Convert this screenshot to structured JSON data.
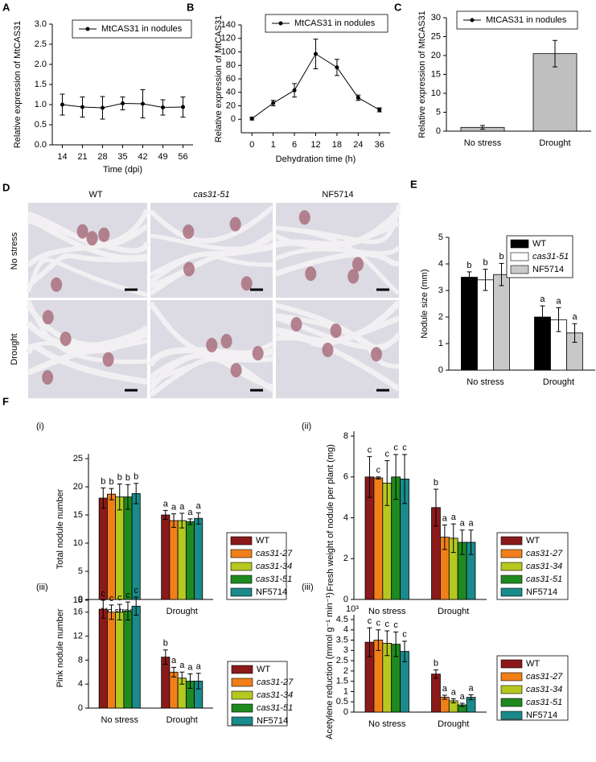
{
  "panel_d": {
    "panel": "D",
    "columns": [
      "WT",
      "cas31-51",
      "NF5714"
    ],
    "rows": [
      "No stress",
      "Drought"
    ]
  },
  "panel_f": "F",
  "chart_data": [
    {
      "type": "line",
      "panel": "A",
      "legend": "MtCAS31 in nodules",
      "color": "#000000",
      "y_label": "Relative expression of MtCAS31",
      "x_label": "Time (dpi)",
      "categories": [
        "14",
        "21",
        "28",
        "35",
        "42",
        "49",
        "56"
      ],
      "values": [
        1.0,
        0.94,
        0.92,
        1.03,
        1.02,
        0.93,
        0.94
      ],
      "errors": [
        0.26,
        0.25,
        0.28,
        0.16,
        0.35,
        0.19,
        0.25
      ],
      "ylim": [
        0,
        3
      ],
      "yticks": [
        {
          "value": 0,
          "label": "0.0"
        },
        {
          "value": 0.5,
          "label": "0.5"
        },
        {
          "value": 1,
          "label": "1.0"
        },
        {
          "value": 1.5,
          "label": "1.5"
        },
        {
          "value": 2,
          "label": "2.0"
        },
        {
          "value": 2.5,
          "label": "2.5"
        },
        {
          "value": 3,
          "label": "3.0"
        }
      ]
    },
    {
      "type": "line",
      "panel": "B",
      "legend": "MtCAS31 in nodules",
      "color": "#000000",
      "y_label": "Relative expression of MtCAS31",
      "x_label": "Dehydration time (h)",
      "categories": [
        "0",
        "1",
        "6",
        "12",
        "18",
        "24",
        "36"
      ],
      "values": [
        1,
        24,
        43,
        97,
        77,
        32,
        14
      ],
      "errors": [
        2,
        4,
        10,
        22,
        12,
        4,
        3
      ],
      "ylim": [
        -20,
        140
      ],
      "yticks": [
        0,
        20,
        40,
        60,
        80,
        100,
        120,
        140
      ]
    },
    {
      "type": "bar",
      "panel": "C",
      "legend": "MtCAS31 in nodules",
      "color": "#c0c0c0",
      "y_label": "Relative expression of MtCAS31",
      "categories": [
        "No stress",
        "Drought"
      ],
      "values": [
        1,
        20.5
      ],
      "errors": [
        0.5,
        3.5
      ],
      "ylim": [
        0,
        30
      ],
      "yticks": [
        0,
        5,
        10,
        15,
        20,
        25,
        30
      ]
    },
    {
      "type": "bar",
      "panel": "E",
      "y_label": "Nodule size (mm)",
      "categories": [
        "No stress",
        "Drought"
      ],
      "series": [
        {
          "name": "WT",
          "color": "#000000",
          "values": [
            3.5,
            2.0
          ],
          "errors": [
            0.2,
            0.42
          ],
          "letters": [
            "b",
            "a"
          ]
        },
        {
          "name": "cas31-51",
          "color": "#ffffff",
          "values": [
            3.4,
            1.9
          ],
          "errors": [
            0.4,
            0.45
          ],
          "letters": [
            "b",
            "a"
          ]
        },
        {
          "name": "NF5714",
          "color": "#c8c8c8",
          "values": [
            3.6,
            1.4
          ],
          "errors": [
            0.42,
            0.35
          ],
          "letters": [
            "b",
            "a"
          ]
        }
      ],
      "ylim": [
        0,
        5
      ],
      "yticks": [
        0,
        1,
        2,
        3,
        4,
        5
      ]
    },
    {
      "type": "bar",
      "panel": "(i)",
      "y_label": "Total nodule number",
      "categories": [
        "No stress",
        "Drought"
      ],
      "series": [
        {
          "name": "WT",
          "color": "#8b1a1a",
          "values": [
            18,
            15
          ],
          "errors": [
            1.8,
            0.8
          ],
          "letters": [
            "b",
            "a"
          ]
        },
        {
          "name": "cas31-27",
          "color": "#f07f1a",
          "values": [
            18.7,
            14
          ],
          "errors": [
            1.0,
            1.2
          ],
          "letters": [
            "b",
            "a"
          ]
        },
        {
          "name": "cas31-34",
          "color": "#b5c820",
          "values": [
            18.2,
            14
          ],
          "errors": [
            2.3,
            1.3
          ],
          "letters": [
            "b",
            "a"
          ]
        },
        {
          "name": "cas31-51",
          "color": "#1f8a1f",
          "values": [
            18.2,
            13.8
          ],
          "errors": [
            2.2,
            0.5
          ],
          "letters": [
            "b",
            "a"
          ]
        },
        {
          "name": "NF5714",
          "color": "#1a8a8a",
          "values": [
            18.8,
            14.4
          ],
          "errors": [
            1.8,
            1.0
          ],
          "letters": [
            "b",
            "a"
          ]
        }
      ],
      "ylim": [
        0,
        25
      ],
      "yticks": [
        0,
        5,
        10,
        15,
        20,
        25
      ]
    },
    {
      "type": "bar",
      "panel": "(ii)",
      "y_label": "Fresh weight of nodule per plant (mg)",
      "categories": [
        "No stress",
        "Drought"
      ],
      "series": [
        {
          "name": "WT",
          "color": "#8b1a1a",
          "values": [
            6,
            4.5
          ],
          "errors": [
            1.0,
            0.9
          ],
          "letters": [
            "c",
            "b"
          ]
        },
        {
          "name": "cas31-27",
          "color": "#f07f1a",
          "values": [
            5.95,
            3.05
          ],
          "errors": [
            0.05,
            0.6
          ],
          "letters": [
            "c",
            "a"
          ]
        },
        {
          "name": "cas31-34",
          "color": "#b5c820",
          "values": [
            5.7,
            3.0
          ],
          "errors": [
            1.1,
            0.7
          ],
          "letters": [
            "c",
            "a"
          ]
        },
        {
          "name": "cas31-51",
          "color": "#1f8a1f",
          "values": [
            6,
            2.8
          ],
          "errors": [
            1.1,
            0.6
          ],
          "letters": [
            "c",
            "a"
          ]
        },
        {
          "name": "NF5714",
          "color": "#1a8a8a",
          "values": [
            5.9,
            2.8
          ],
          "errors": [
            1.2,
            0.6
          ],
          "letters": [
            "c",
            "a"
          ]
        }
      ],
      "ylim": [
        0,
        8
      ],
      "yticks": [
        0,
        2,
        4,
        6,
        8
      ]
    },
    {
      "type": "bar",
      "panel": "(iii)",
      "y_label": "Pink nodule number",
      "categories": [
        "No stress",
        "Drought"
      ],
      "series": [
        {
          "name": "WT",
          "color": "#8b1a1a",
          "values": [
            16.5,
            8.5
          ],
          "errors": [
            1.5,
            1.2
          ],
          "letters": [
            "c",
            "b"
          ]
        },
        {
          "name": "cas31-27",
          "color": "#f07f1a",
          "values": [
            16,
            6
          ],
          "errors": [
            1.2,
            0.8
          ],
          "letters": [
            "c",
            "a"
          ]
        },
        {
          "name": "cas31-34",
          "color": "#b5c820",
          "values": [
            16,
            5
          ],
          "errors": [
            1.3,
            1.0
          ],
          "letters": [
            "c",
            "a"
          ]
        },
        {
          "name": "cas31-51",
          "color": "#1f8a1f",
          "values": [
            16.2,
            4.5
          ],
          "errors": [
            1.5,
            1.2
          ],
          "letters": [
            "c",
            "a"
          ]
        },
        {
          "name": "NF5714",
          "color": "#1a8a8a",
          "values": [
            17,
            4.5
          ],
          "errors": [
            1.5,
            1.3
          ],
          "letters": [
            "c",
            "a"
          ]
        }
      ],
      "ylim": [
        0,
        20
      ],
      "yticks": [
        0,
        4,
        8,
        12,
        16,
        18
      ]
    },
    {
      "type": "bar",
      "panel": "(iii)",
      "unit_note": "10³",
      "y_label": "Acetylene reduction (mmol g⁻¹ min⁻¹)",
      "categories": [
        "No stress",
        "Drought"
      ],
      "series": [
        {
          "name": "WT",
          "color": "#8b1a1a",
          "values": [
            3.4,
            1.85
          ],
          "errors": [
            0.7,
            0.2
          ],
          "letters": [
            "c",
            "b"
          ]
        },
        {
          "name": "cas31-27",
          "color": "#f07f1a",
          "values": [
            3.5,
            0.72
          ],
          "errors": [
            0.5,
            0.1
          ],
          "letters": [
            "c",
            "a"
          ]
        },
        {
          "name": "cas31-34",
          "color": "#b5c820",
          "values": [
            3.35,
            0.55
          ],
          "errors": [
            0.6,
            0.1
          ],
          "letters": [
            "c",
            "a"
          ]
        },
        {
          "name": "cas31-51",
          "color": "#1f8a1f",
          "values": [
            3.3,
            0.35
          ],
          "errors": [
            0.6,
            0.08
          ],
          "letters": [
            "c",
            "a"
          ]
        },
        {
          "name": "NF5714",
          "color": "#1a8a8a",
          "values": [
            2.95,
            0.72
          ],
          "errors": [
            0.5,
            0.12
          ],
          "letters": [
            "c",
            "a"
          ]
        }
      ],
      "ylim": [
        0,
        4.5
      ],
      "yticks": [
        0,
        0.5,
        1,
        1.5,
        2,
        2.5,
        3,
        3.5,
        4,
        4.5
      ]
    }
  ]
}
